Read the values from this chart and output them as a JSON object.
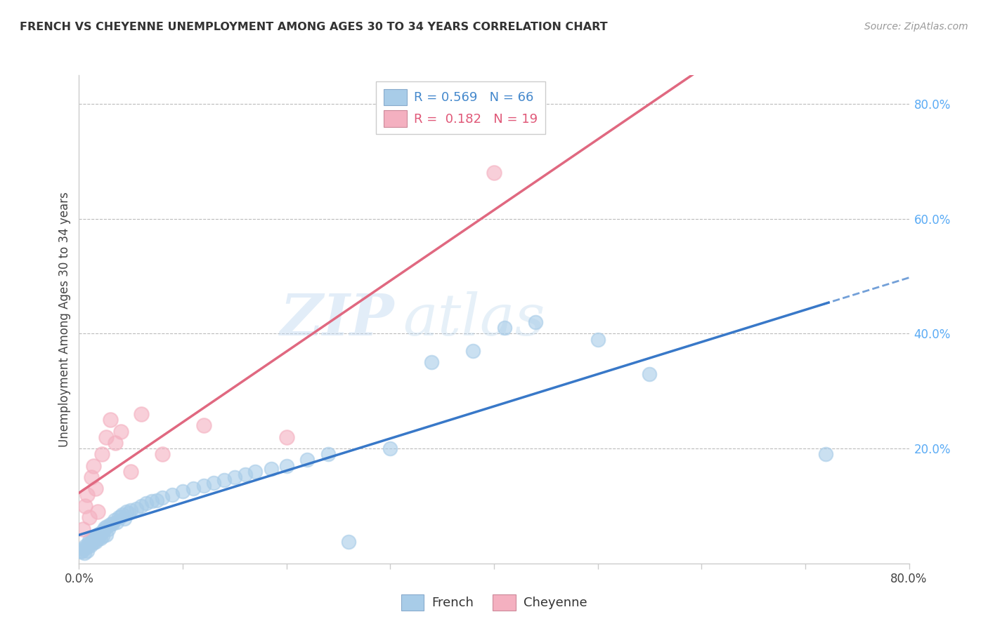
{
  "title": "FRENCH VS CHEYENNE UNEMPLOYMENT AMONG AGES 30 TO 34 YEARS CORRELATION CHART",
  "source": "Source: ZipAtlas.com",
  "ylabel": "Unemployment Among Ages 30 to 34 years",
  "xlim": [
    0.0,
    0.8
  ],
  "ylim": [
    0.0,
    0.85
  ],
  "yticks_right": [
    0.2,
    0.4,
    0.6,
    0.8
  ],
  "french_R": 0.569,
  "french_N": 66,
  "cheyenne_R": 0.182,
  "cheyenne_N": 19,
  "french_color": "#a8cce8",
  "cheyenne_color": "#f4b0c0",
  "french_line_color": "#3878c8",
  "cheyenne_line_color": "#e06880",
  "watermark_zip": "ZIP",
  "watermark_atlas": "atlas",
  "background_color": "#ffffff",
  "french_scatter_x": [
    0.002,
    0.003,
    0.004,
    0.005,
    0.006,
    0.007,
    0.008,
    0.009,
    0.01,
    0.011,
    0.012,
    0.013,
    0.014,
    0.015,
    0.016,
    0.017,
    0.018,
    0.019,
    0.02,
    0.021,
    0.022,
    0.023,
    0.024,
    0.025,
    0.026,
    0.027,
    0.028,
    0.03,
    0.032,
    0.034,
    0.036,
    0.038,
    0.04,
    0.042,
    0.044,
    0.046,
    0.048,
    0.05,
    0.055,
    0.06,
    0.065,
    0.07,
    0.075,
    0.08,
    0.09,
    0.1,
    0.11,
    0.12,
    0.13,
    0.14,
    0.15,
    0.16,
    0.17,
    0.185,
    0.2,
    0.22,
    0.24,
    0.26,
    0.3,
    0.34,
    0.38,
    0.41,
    0.44,
    0.5,
    0.55,
    0.72
  ],
  "french_scatter_y": [
    0.02,
    0.022,
    0.025,
    0.018,
    0.03,
    0.028,
    0.022,
    0.035,
    0.04,
    0.032,
    0.038,
    0.042,
    0.036,
    0.045,
    0.038,
    0.05,
    0.042,
    0.048,
    0.052,
    0.044,
    0.055,
    0.048,
    0.058,
    0.062,
    0.05,
    0.065,
    0.06,
    0.068,
    0.07,
    0.075,
    0.072,
    0.08,
    0.082,
    0.085,
    0.078,
    0.09,
    0.088,
    0.092,
    0.095,
    0.1,
    0.105,
    0.108,
    0.11,
    0.115,
    0.12,
    0.125,
    0.13,
    0.135,
    0.14,
    0.145,
    0.15,
    0.155,
    0.16,
    0.165,
    0.17,
    0.18,
    0.19,
    0.038,
    0.2,
    0.35,
    0.37,
    0.41,
    0.42,
    0.39,
    0.33,
    0.19
  ],
  "cheyenne_scatter_x": [
    0.004,
    0.006,
    0.008,
    0.01,
    0.012,
    0.014,
    0.016,
    0.018,
    0.022,
    0.026,
    0.03,
    0.035,
    0.04,
    0.05,
    0.06,
    0.08,
    0.12,
    0.2,
    0.4
  ],
  "cheyenne_scatter_y": [
    0.06,
    0.1,
    0.12,
    0.08,
    0.15,
    0.17,
    0.13,
    0.09,
    0.19,
    0.22,
    0.25,
    0.21,
    0.23,
    0.16,
    0.26,
    0.19,
    0.24,
    0.22,
    0.68
  ]
}
